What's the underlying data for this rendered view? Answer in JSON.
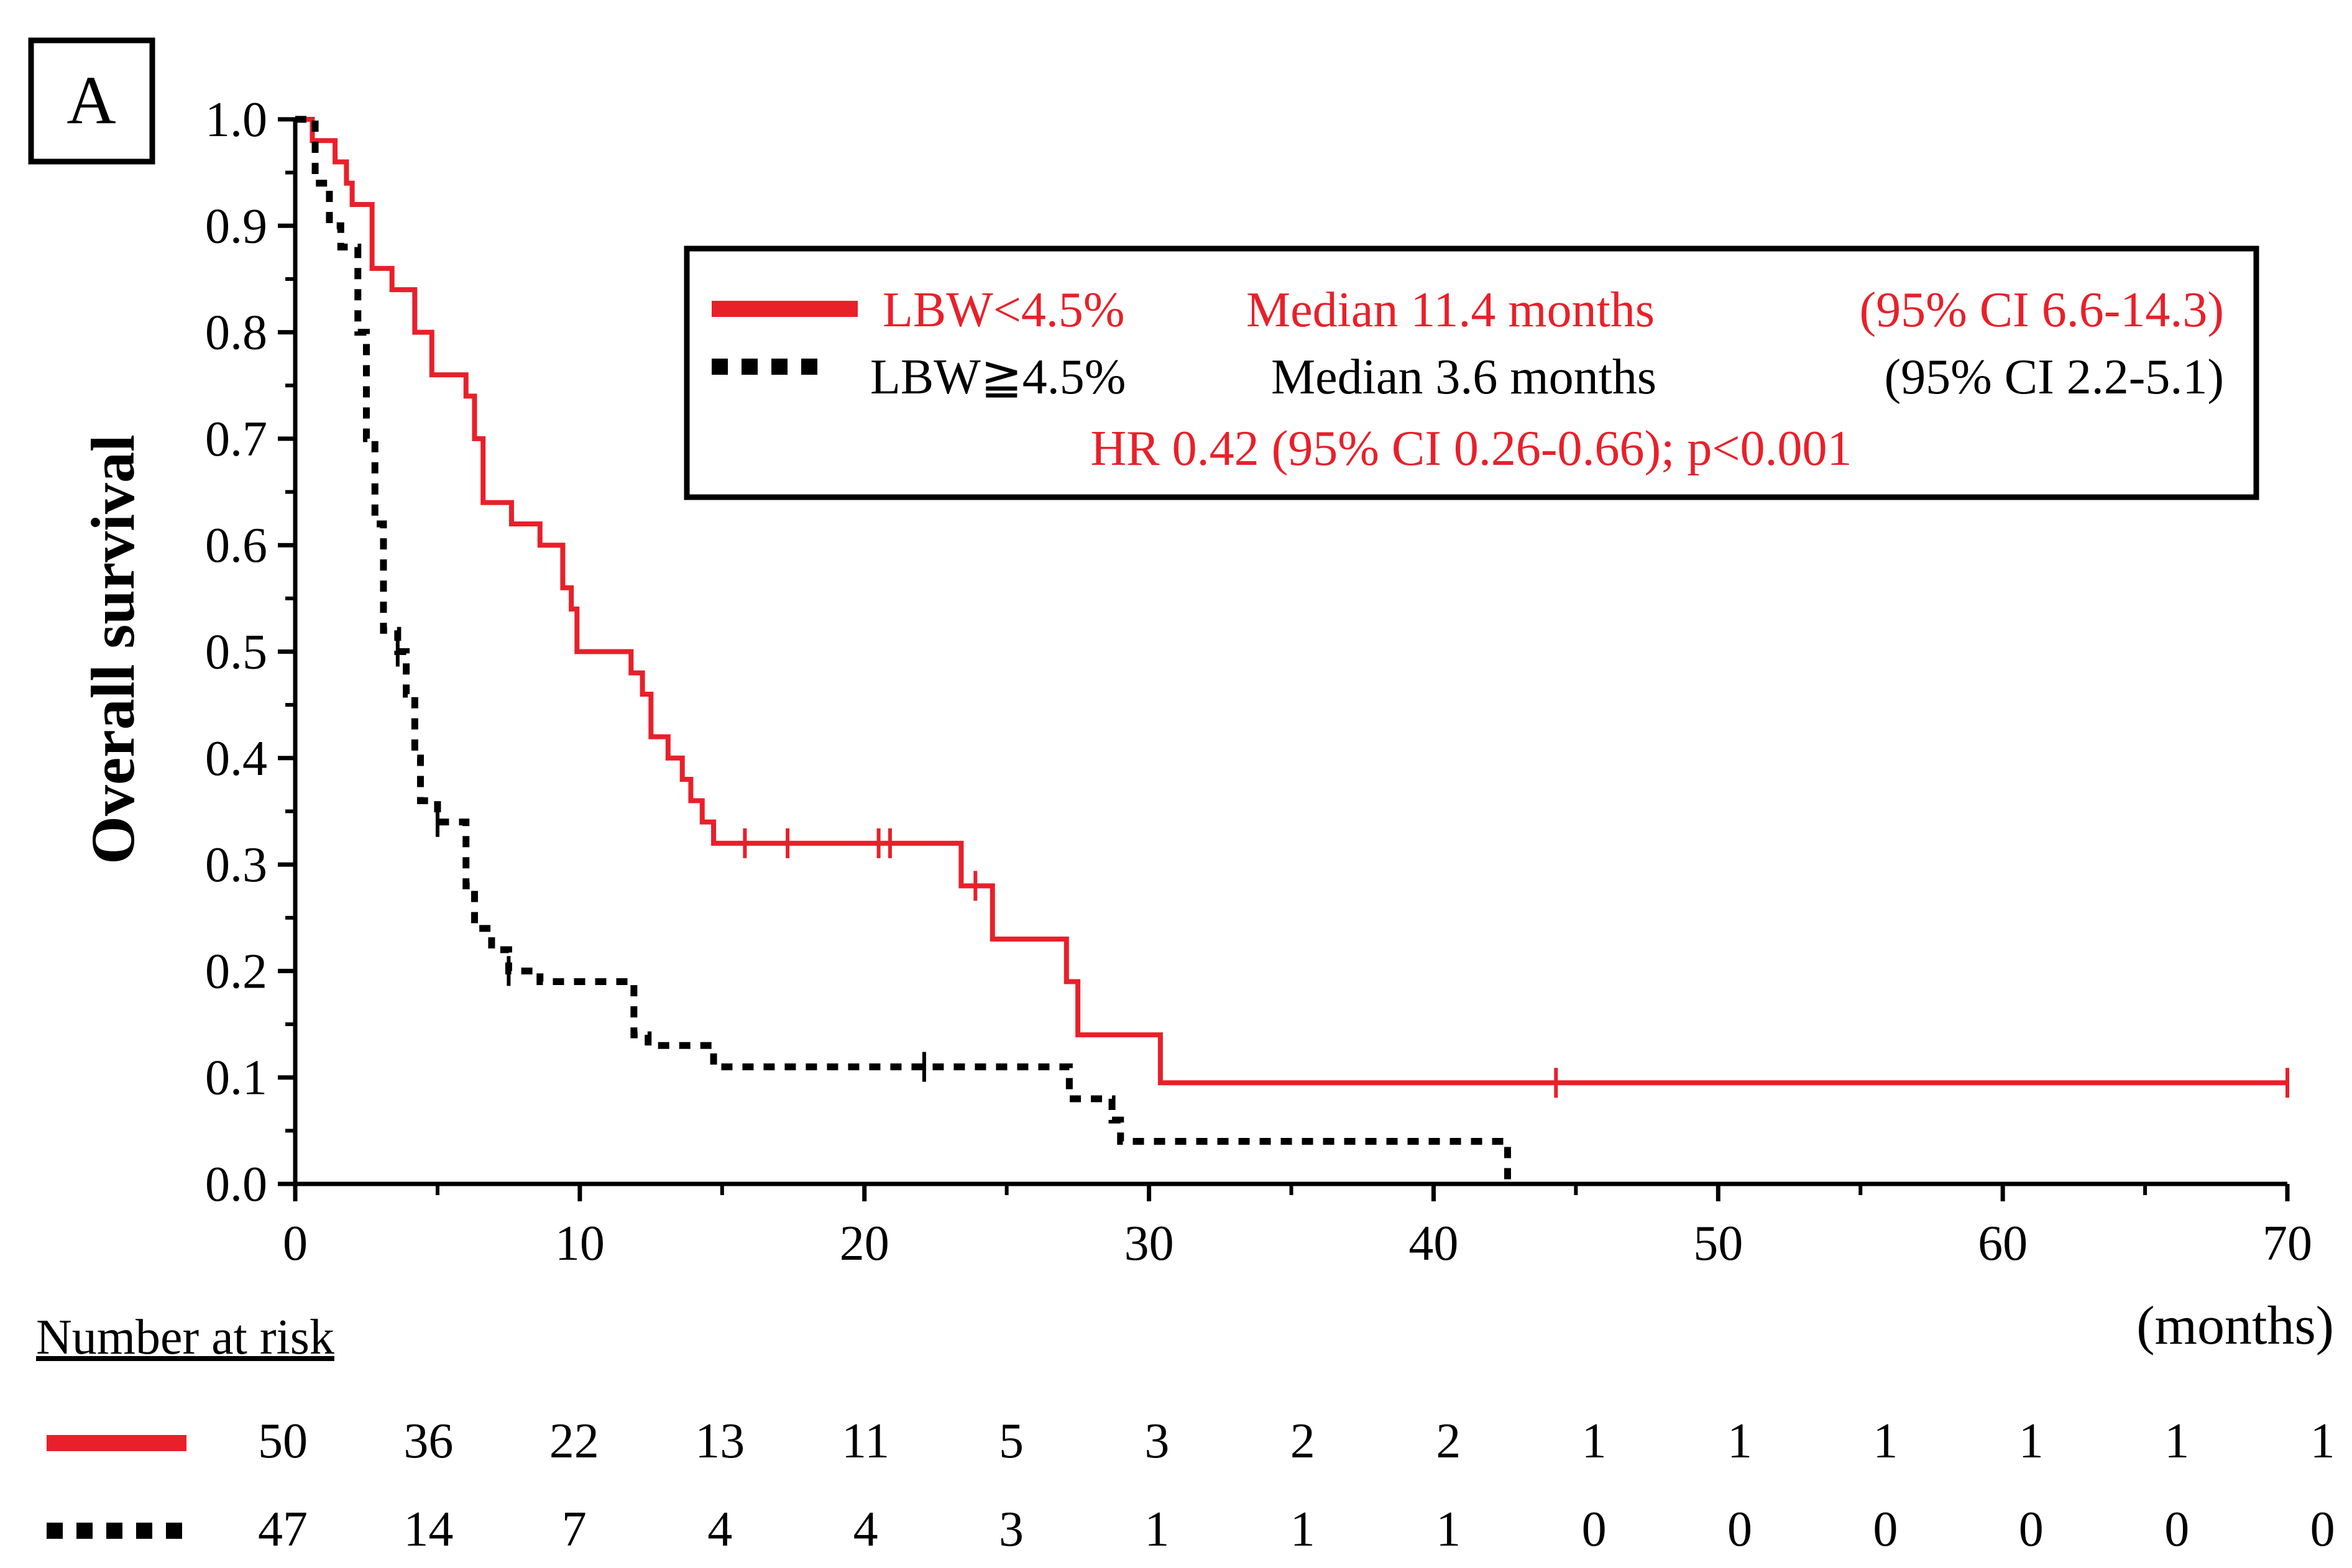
{
  "panel_label": "A",
  "legend": {
    "entries": [
      {
        "label": "LBW<4.5%",
        "median": "Median 11.4 months",
        "ci": "(95% CI 6.6-14.3)",
        "color": "#e8202a",
        "style": "solid"
      },
      {
        "label": "LBW≧4.5%",
        "median": "Median 3.6 months",
        "ci": "(95% CI 2.2-5.1)",
        "color": "#000000",
        "style": "dashed"
      }
    ],
    "hr_text": "HR 0.42 (95% CI 0.26-0.66); p<0.001",
    "hr_color": "#e8202a"
  },
  "risk_table": {
    "title": "Number at risk",
    "rows": [
      {
        "style": "solid",
        "color": "#e8202a",
        "values": [
          "50",
          "36",
          "22",
          "13",
          "11",
          "5",
          "3",
          "2",
          "2",
          "1",
          "1",
          "1",
          "1",
          "1",
          "1"
        ]
      },
      {
        "style": "dashed",
        "color": "#000000",
        "values": [
          "47",
          "14",
          "7",
          "4",
          "4",
          "3",
          "1",
          "1",
          "1",
          "0",
          "0",
          "0",
          "0",
          "0",
          "0"
        ]
      }
    ]
  },
  "chart_data": {
    "type": "line",
    "step": true,
    "xlabel": "(months)",
    "ylabel": "Overall survival",
    "xlim": [
      0,
      70
    ],
    "ylim": [
      0,
      1.0
    ],
    "xticks": [
      "0",
      "10",
      "20",
      "30",
      "40",
      "50",
      "60",
      "70"
    ],
    "xtick_values": [
      0,
      10,
      20,
      30,
      40,
      50,
      60,
      70
    ],
    "yticks": [
      "0.0",
      "0.1",
      "0.2",
      "0.3",
      "0.4",
      "0.5",
      "0.6",
      "0.7",
      "0.8",
      "0.9",
      "1.0"
    ],
    "ytick_values": [
      0,
      0.1,
      0.2,
      0.3,
      0.4,
      0.5,
      0.6,
      0.7,
      0.8,
      0.9,
      1.0
    ],
    "grid": false,
    "series": [
      {
        "name": "LBW<4.5%",
        "color": "#e8202a",
        "dash": false,
        "points": [
          [
            0,
            1.0
          ],
          [
            0.6,
            0.98
          ],
          [
            1.4,
            0.96
          ],
          [
            1.8,
            0.94
          ],
          [
            2.0,
            0.92
          ],
          [
            2.7,
            0.86
          ],
          [
            3.4,
            0.84
          ],
          [
            4.2,
            0.8
          ],
          [
            4.8,
            0.76
          ],
          [
            6.0,
            0.74
          ],
          [
            6.3,
            0.7
          ],
          [
            6.6,
            0.64
          ],
          [
            7.6,
            0.62
          ],
          [
            8.6,
            0.6
          ],
          [
            9.4,
            0.56
          ],
          [
            9.7,
            0.54
          ],
          [
            9.9,
            0.5
          ],
          [
            11.8,
            0.48
          ],
          [
            12.2,
            0.46
          ],
          [
            12.5,
            0.42
          ],
          [
            13.1,
            0.4
          ],
          [
            13.6,
            0.38
          ],
          [
            13.9,
            0.36
          ],
          [
            14.3,
            0.34
          ],
          [
            14.7,
            0.32
          ],
          [
            23.4,
            0.28
          ],
          [
            24.5,
            0.23
          ],
          [
            27.1,
            0.19
          ],
          [
            27.5,
            0.14
          ],
          [
            30.4,
            0.095
          ],
          [
            70,
            0.095
          ]
        ],
        "censor_x": [
          15.8,
          17.3,
          20.5,
          20.9,
          23.9,
          44.3,
          70
        ]
      },
      {
        "name": "LBW≧4.5%",
        "color": "#000000",
        "dash": true,
        "points": [
          [
            0,
            1.0
          ],
          [
            0.7,
            0.94
          ],
          [
            1.2,
            0.9
          ],
          [
            1.6,
            0.88
          ],
          [
            2.2,
            0.8
          ],
          [
            2.5,
            0.7
          ],
          [
            2.8,
            0.62
          ],
          [
            3.1,
            0.52
          ],
          [
            3.6,
            0.5
          ],
          [
            3.9,
            0.46
          ],
          [
            4.2,
            0.4
          ],
          [
            4.4,
            0.36
          ],
          [
            5.0,
            0.34
          ],
          [
            6.0,
            0.28
          ],
          [
            6.3,
            0.24
          ],
          [
            6.9,
            0.22
          ],
          [
            7.5,
            0.2
          ],
          [
            8.6,
            0.19
          ],
          [
            11.9,
            0.14
          ],
          [
            12.4,
            0.13
          ],
          [
            14.7,
            0.11
          ],
          [
            27.2,
            0.08
          ],
          [
            28.7,
            0.06
          ],
          [
            29.0,
            0.04
          ],
          [
            42.6,
            0.0
          ]
        ],
        "censor_x": [
          3.6,
          5.0,
          7.5,
          22.1
        ]
      }
    ]
  }
}
